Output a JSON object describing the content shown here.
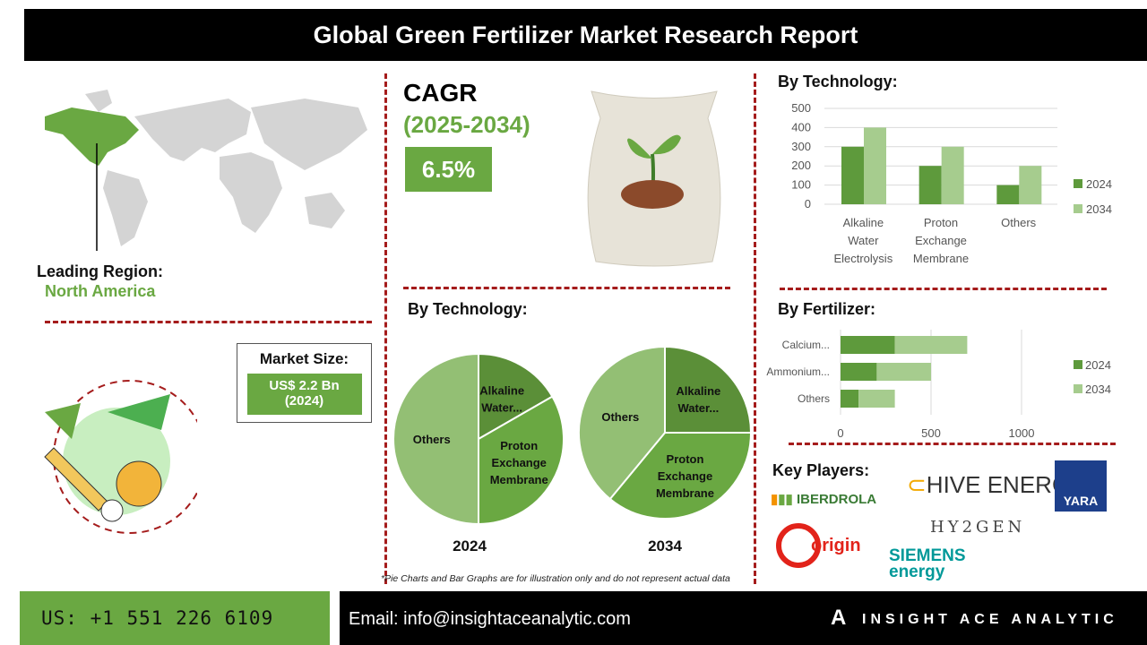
{
  "title": "Global Green Fertilizer Market Research Report",
  "region": {
    "label": "Leading Region:",
    "value": "North America"
  },
  "cagr": {
    "label": "CAGR",
    "period": "(2025-2034)",
    "value": "6.5%"
  },
  "market_size": {
    "label": "Market Size:",
    "value": "US$ 2.2 Bn",
    "year": "(2024)"
  },
  "colors": {
    "accent": "#6aa842",
    "dark_green": "#5e9a3c",
    "light_green": "#a6cc8e",
    "divider": "#a51c1c"
  },
  "chart_data": [
    {
      "type": "bar",
      "title": "By Technology:",
      "categories": [
        "Alkaline Water Electrolysis",
        "Proton Exchange Membrane",
        "Others"
      ],
      "category_lines": [
        [
          "Alkaline",
          "Water",
          "Electrolysis"
        ],
        [
          "Proton",
          "Exchange",
          "Membrane"
        ],
        [
          "Others"
        ]
      ],
      "series": [
        {
          "name": "2024",
          "values": [
            300,
            200,
            100
          ]
        },
        {
          "name": "2034",
          "values": [
            400,
            300,
            200
          ]
        }
      ],
      "ylim": [
        0,
        500
      ],
      "yticks": [
        0,
        100,
        200,
        300,
        400,
        500
      ],
      "grid": true,
      "legend": "right"
    },
    {
      "type": "bar",
      "orientation": "horizontal",
      "stacked": true,
      "title": "By Fertilizer:",
      "categories": [
        "Calcium...",
        "Ammonium...",
        "Others"
      ],
      "series": [
        {
          "name": "2024",
          "values": [
            300,
            200,
            100
          ]
        },
        {
          "name": "2034",
          "values": [
            400,
            300,
            200
          ]
        }
      ],
      "xlim": [
        0,
        1200
      ],
      "xticks": [
        0,
        500,
        1000
      ],
      "grid": true,
      "legend": "right"
    },
    {
      "type": "pie",
      "title": "By Technology:",
      "caption": "2024",
      "slices": [
        {
          "label": "Alkaline Water...",
          "value": 16.7
        },
        {
          "label": "Proton Exchange Membrane",
          "value": 33.3
        },
        {
          "label": "Others",
          "value": 50
        }
      ]
    },
    {
      "type": "pie",
      "caption": "2034",
      "slices": [
        {
          "label": "Alkaline Water...",
          "value": 25
        },
        {
          "label": "Proton Exchange Membrane",
          "value": 36
        },
        {
          "label": "Others",
          "value": 39
        }
      ]
    }
  ],
  "disclaimer": "*Pie Charts and Bar Graphs are for illustration only and do not represent actual data",
  "key_players": {
    "label": "Key Players:",
    "logos": [
      "IBERDROLA",
      "HIVE ENERGY",
      "YARA",
      "origin",
      "HY2GEN",
      "SIEMENS energy"
    ]
  },
  "footer": {
    "phone": "US: +1 551 226 6109",
    "email": "Email: info@insightaceanalytic.com",
    "brand": "INSIGHT ACE ANALYTIC"
  }
}
